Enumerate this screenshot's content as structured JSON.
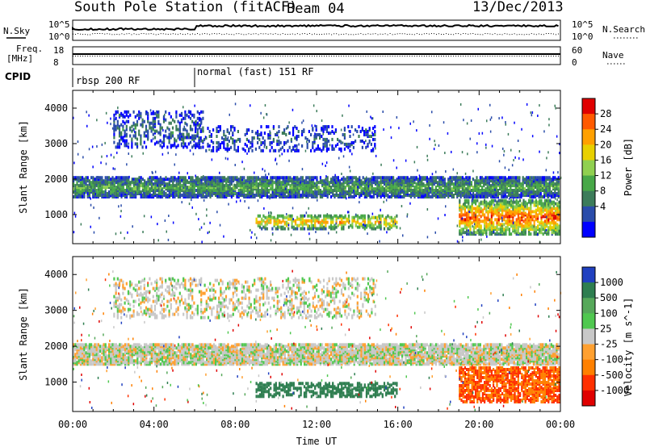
{
  "header": {
    "station": "South Pole Station (fitACF)",
    "beam": "Beam 04",
    "date": "13/Dec/2013"
  },
  "strips": {
    "nsky_label": "N.Sky",
    "nsearch_label": "N.Search",
    "noise_ticks": [
      "10^5",
      "10^0"
    ],
    "freq_label_1": "Freq.",
    "freq_label_2": "[MHz]",
    "freq_ticks": [
      "18",
      "8"
    ],
    "nave_label": "Nave",
    "nave_ticks": [
      "60",
      "0"
    ],
    "cpid_label": "CPID",
    "cpid_segments": [
      {
        "label": "rbsp 200 RF",
        "start_hour": 0
      },
      {
        "label": "normal (fast) 151 RF",
        "start_hour": 6
      }
    ]
  },
  "chart_data": [
    {
      "type": "heatmap",
      "name": "Power",
      "xlabel": "",
      "ylabel": "Slant Range [km]",
      "xlim": [
        0,
        24
      ],
      "ylim": [
        180,
        4500
      ],
      "yticks": [
        1000,
        2000,
        3000,
        4000
      ],
      "colorbar": {
        "label": "Power [dB]",
        "ticks": [
          "28",
          "24",
          "20",
          "16",
          "12",
          "8",
          "4"
        ],
        "colors": [
          "#e00000",
          "#ff5a00",
          "#ffa000",
          "#e8d000",
          "#90d050",
          "#48a848",
          "#3c7c5a",
          "#2a4caa",
          "#0000ff"
        ]
      },
      "bands": [
        {
          "label": "main scatter band",
          "x_range": [
            0,
            24
          ],
          "range_km": [
            1500,
            2050
          ],
          "power_db": 10
        },
        {
          "label": "upper patch",
          "x_range": [
            2,
            6.5
          ],
          "range_km": [
            2900,
            3900
          ],
          "power_db": 6
        },
        {
          "label": "upper band",
          "x_range": [
            6,
            15
          ],
          "range_km": [
            2800,
            3500
          ],
          "power_db": 5
        },
        {
          "label": "lower scatter",
          "x_range": [
            9,
            16
          ],
          "range_km": [
            600,
            1000
          ],
          "power_db": 18
        },
        {
          "label": "late lower scatter",
          "x_range": [
            19,
            24
          ],
          "range_km": [
            450,
            1400
          ],
          "power_db": 22
        }
      ]
    },
    {
      "type": "heatmap",
      "name": "Velocity",
      "xlabel": "Time UT",
      "ylabel": "Slant Range [km]",
      "xlim": [
        0,
        24
      ],
      "ylim": [
        180,
        4500
      ],
      "xticks": [
        "00:00",
        "04:00",
        "08:00",
        "12:00",
        "16:00",
        "20:00",
        "00:00"
      ],
      "yticks": [
        1000,
        2000,
        3000,
        4000
      ],
      "colorbar": {
        "label": "Velocity [m s^-1]",
        "ticks": [
          "1000",
          "500",
          "100",
          "25",
          "-25",
          "-100",
          "-500",
          "-1000"
        ],
        "colors": [
          "#2040c0",
          "#2e7e50",
          "#56a85a",
          "#50c850",
          "#c8c8c8",
          "#ffa030",
          "#ff8000",
          "#ff3000",
          "#e00000"
        ]
      },
      "bands": [
        {
          "label": "main band ground scatter",
          "x_range": [
            0,
            24
          ],
          "range_km": [
            1500,
            2050
          ],
          "velocity": 0
        },
        {
          "label": "upper band",
          "x_range": [
            2,
            15
          ],
          "range_km": [
            2800,
            3900
          ],
          "velocity": 0
        },
        {
          "label": "lower scatter",
          "x_range": [
            9,
            16
          ],
          "range_km": [
            600,
            1000
          ],
          "velocity": 400
        },
        {
          "label": "late lower scatter",
          "x_range": [
            19,
            24
          ],
          "range_km": [
            450,
            1400
          ],
          "velocity": -300
        }
      ]
    }
  ]
}
